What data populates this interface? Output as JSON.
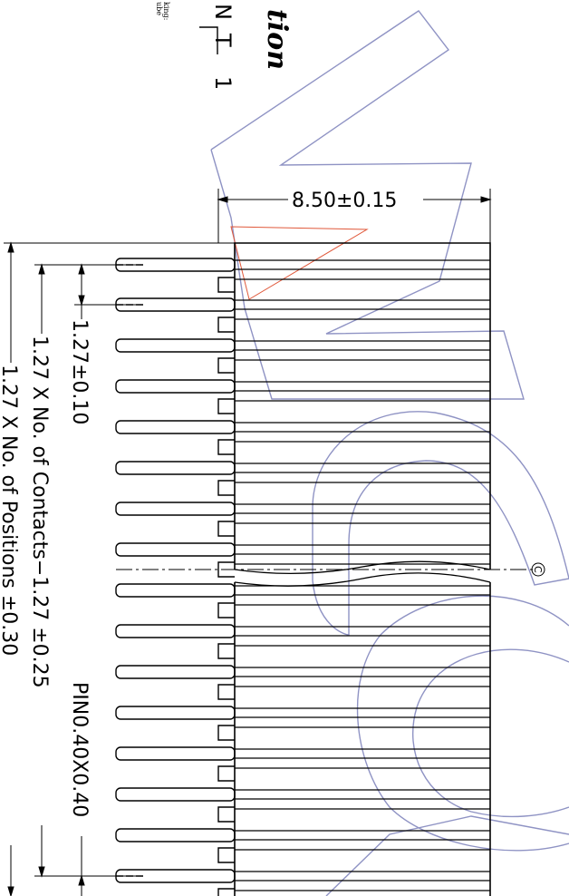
{
  "title_fragment": "tion",
  "small_note_line1": "king:",
  "small_note_line2": "ube",
  "block_letters": [
    "N",
    "T",
    "1"
  ],
  "dim_width": "8.50±0.15",
  "dim_pitch": "1.27±0.10",
  "dim_contacts": "1.27 X No. of Contacts−1.27 ±0.25",
  "dim_positions": "1.27 X No. of Positions ±0.30",
  "pin_size": "PIN0.40X0.40",
  "centerline_symbol": "C",
  "colors": {
    "line": "#000000",
    "watermark": "#8f93c4",
    "accent": "#e0583a"
  }
}
